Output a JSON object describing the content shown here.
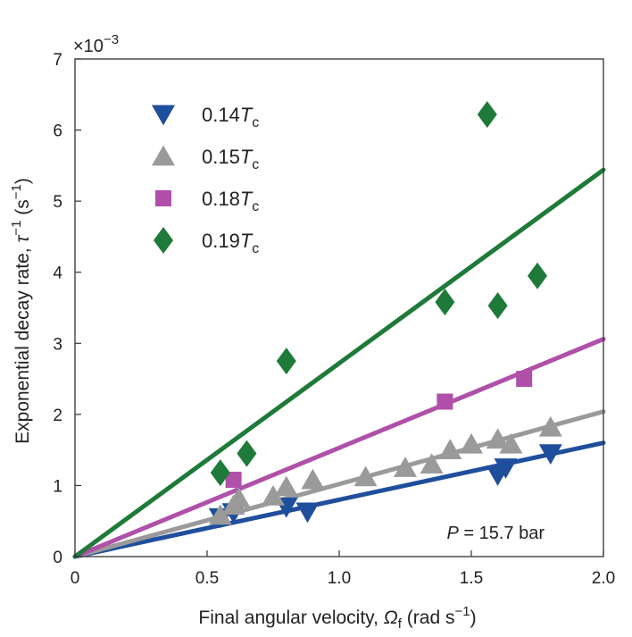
{
  "chart_data": {
    "type": "scatter",
    "title": "",
    "xlabel": {
      "main": "Final angular velocity, ",
      "symbol": "Ω",
      "sub": "f",
      "units": " (rad s",
      "sup": "−1",
      "close": ")"
    },
    "ylabel": {
      "main": "Exponential decay rate, ",
      "symbol": "τ",
      "sup": "−1",
      "units": " (s",
      "sup2": "−1",
      "close": ")"
    },
    "x_ticks": [
      "0",
      "0.5",
      "1.0",
      "1.5",
      "2.0"
    ],
    "y_ticks": [
      "0",
      "1",
      "2",
      "3",
      "4",
      "5",
      "6",
      "7"
    ],
    "y_multiplier": {
      "prefix": "×10",
      "exp": "−3"
    },
    "xlim": [
      0,
      2.0
    ],
    "ylim": [
      0,
      7
    ],
    "annotation": {
      "symbol": "P",
      "text": " = 15.7 bar"
    },
    "series": [
      {
        "name": "0.14Tc",
        "label_value": "0.14",
        "label_symbol": "T",
        "label_sub": "c",
        "marker": "triangle-down",
        "color": "#1f4e9c",
        "fit_slope": 0.8,
        "points": [
          [
            0.55,
            0.55
          ],
          [
            0.6,
            0.62
          ],
          [
            0.8,
            0.7
          ],
          [
            0.88,
            0.63
          ],
          [
            1.6,
            1.15
          ],
          [
            1.63,
            1.25
          ],
          [
            1.8,
            1.45
          ]
        ]
      },
      {
        "name": "0.15Tc",
        "label_value": "0.15",
        "label_symbol": "T",
        "label_sub": "c",
        "marker": "triangle-up",
        "color": "#9a9a9a",
        "fit_slope": 1.02,
        "points": [
          [
            0.55,
            0.58
          ],
          [
            0.6,
            0.72
          ],
          [
            0.62,
            0.82
          ],
          [
            0.75,
            0.85
          ],
          [
            0.8,
            0.98
          ],
          [
            0.9,
            1.08
          ],
          [
            1.1,
            1.12
          ],
          [
            1.25,
            1.25
          ],
          [
            1.35,
            1.3
          ],
          [
            1.42,
            1.5
          ],
          [
            1.5,
            1.58
          ],
          [
            1.6,
            1.65
          ],
          [
            1.65,
            1.58
          ],
          [
            1.8,
            1.82
          ]
        ]
      },
      {
        "name": "0.18Tc",
        "label_value": "0.18",
        "label_symbol": "T",
        "label_sub": "c",
        "marker": "square",
        "color": "#b050a8",
        "fit_slope": 1.53,
        "points": [
          [
            0.6,
            1.08
          ],
          [
            1.4,
            2.18
          ],
          [
            1.7,
            2.5
          ]
        ]
      },
      {
        "name": "0.19Tc",
        "label_value": "0.19",
        "label_symbol": "T",
        "label_sub": "c",
        "marker": "diamond",
        "color": "#1e7a38",
        "fit_slope": 2.72,
        "points": [
          [
            0.55,
            1.18
          ],
          [
            0.65,
            1.45
          ],
          [
            0.8,
            2.75
          ],
          [
            1.4,
            3.58
          ],
          [
            1.56,
            6.22
          ],
          [
            1.6,
            3.53
          ],
          [
            1.75,
            3.95
          ]
        ]
      }
    ]
  }
}
